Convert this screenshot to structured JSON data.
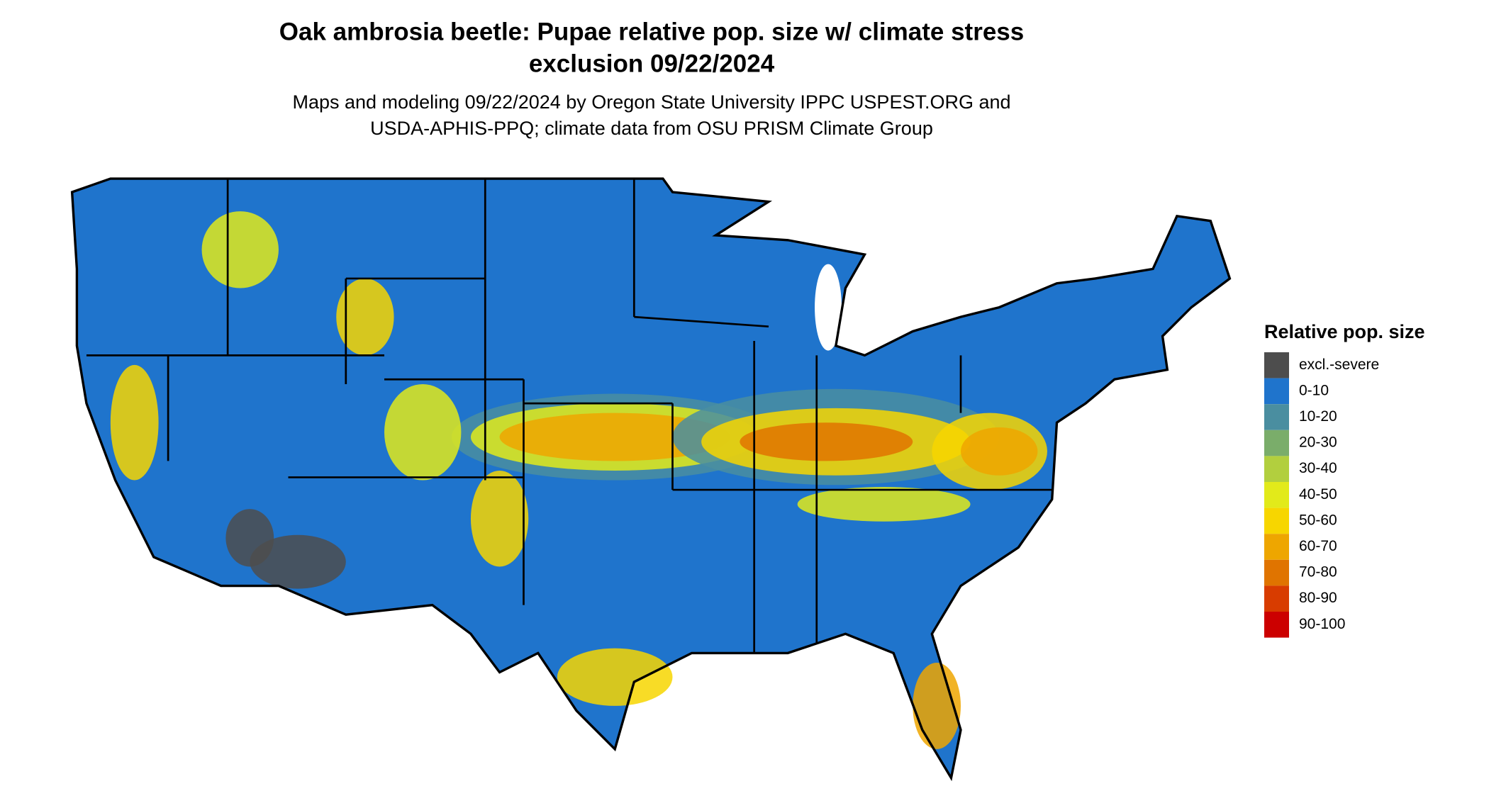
{
  "header": {
    "title": [
      "Oak ambrosia beetle: Pupae relative pop. size w/ climate stress",
      "exclusion 09/22/2024"
    ],
    "subtitle": [
      "Maps and modeling 09/22/2024 by Oregon State University IPPC USPEST.ORG and",
      "USDA-APHIS-PPQ; climate data from OSU PRISM Climate Group"
    ]
  },
  "legend": {
    "title": "Relative pop. size",
    "items": [
      {
        "label": "excl.-severe",
        "color": "#4d4d4d"
      },
      {
        "label": "0-10",
        "color": "#1f74cc"
      },
      {
        "label": "10-20",
        "color": "#4a8ea0"
      },
      {
        "label": "20-30",
        "color": "#7aad6a"
      },
      {
        "label": "30-40",
        "color": "#b2cf3e"
      },
      {
        "label": "40-50",
        "color": "#e2ea1a"
      },
      {
        "label": "50-60",
        "color": "#f7d600"
      },
      {
        "label": "60-70",
        "color": "#eea600"
      },
      {
        "label": "70-80",
        "color": "#e07400"
      },
      {
        "label": "80-90",
        "color": "#d83c00"
      },
      {
        "label": "90-100",
        "color": "#cc0000"
      }
    ]
  }
}
